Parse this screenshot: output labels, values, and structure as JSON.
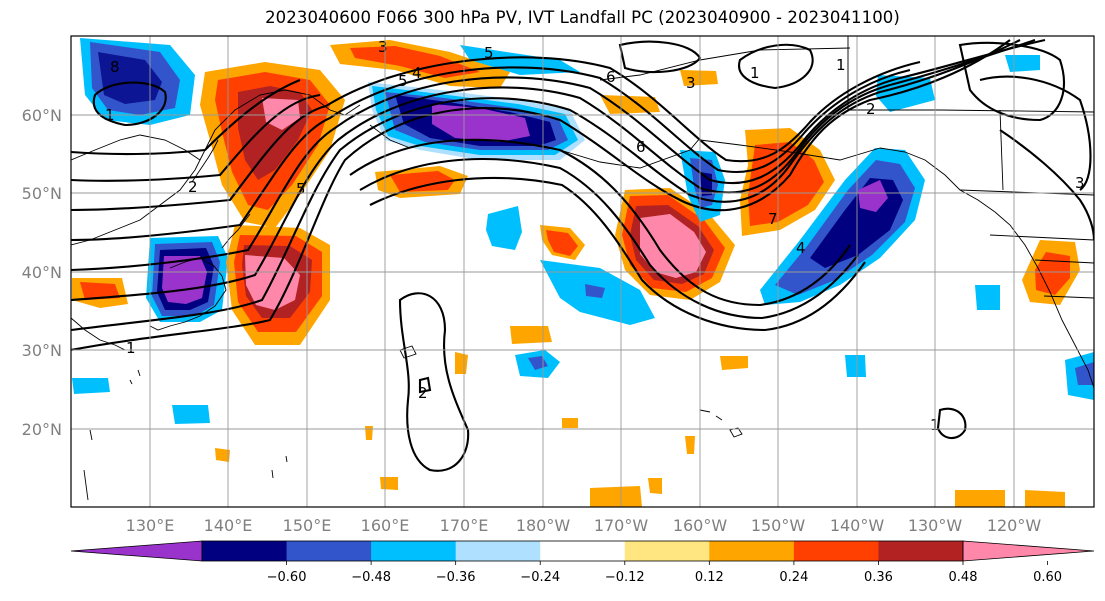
{
  "title": "2023040600 F066 300 hPa PV, IVT Landfall PC (2023040900 - 2023041100)",
  "lat_labels": [
    "60°N",
    "50°N",
    "40°N",
    "30°N",
    "20°N"
  ],
  "lon_labels": [
    "130°E",
    "140°E",
    "150°E",
    "160°E",
    "170°E",
    "180°W",
    "170°W",
    "160°W",
    "150°W",
    "140°W",
    "130°W",
    "120°W"
  ],
  "colorbar": {
    "colors": [
      "#9933cc",
      "#000080",
      "#3355cc",
      "#00bfff",
      "#b0e0ff",
      "#ffffff",
      "#ffe680",
      "#ffa500",
      "#ff4000",
      "#b22222",
      "#ff88aa"
    ],
    "labels": [
      "−0.60",
      "−0.48",
      "−0.36",
      "−0.24",
      "−0.12",
      "0.12",
      "0.24",
      "0.36",
      "0.48",
      "0.60"
    ]
  },
  "contour_labels": [
    "8",
    "3",
    "5",
    "4",
    "3",
    "5",
    "6",
    "1",
    "2",
    "6",
    "1",
    "2",
    "1",
    "3",
    "5",
    "7",
    "4",
    "1",
    "2",
    "1"
  ]
}
